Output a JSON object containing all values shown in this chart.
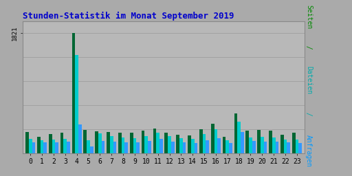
{
  "title": "Stunden-Statistik im Monat September 2019",
  "xlabel_values": [
    0,
    1,
    2,
    3,
    4,
    5,
    6,
    7,
    8,
    9,
    10,
    11,
    12,
    13,
    14,
    15,
    16,
    17,
    18,
    19,
    20,
    21,
    22,
    23
  ],
  "seiten": [
    320,
    245,
    285,
    305,
    1821,
    350,
    335,
    315,
    305,
    310,
    340,
    370,
    305,
    275,
    265,
    365,
    445,
    245,
    605,
    340,
    350,
    340,
    275,
    305
  ],
  "dateien": [
    215,
    200,
    210,
    215,
    1490,
    195,
    300,
    255,
    235,
    230,
    255,
    305,
    255,
    225,
    220,
    285,
    360,
    195,
    475,
    240,
    245,
    235,
    205,
    210
  ],
  "anfragen": [
    160,
    165,
    165,
    170,
    430,
    105,
    180,
    170,
    165,
    165,
    185,
    215,
    170,
    165,
    158,
    200,
    225,
    155,
    315,
    180,
    175,
    175,
    160,
    155
  ],
  "color_seiten": "#006633",
  "color_dateien": "#00CCCC",
  "color_anfragen": "#3399FF",
  "bg_color": "#AAAAAA",
  "plot_bg": "#B8B8B8",
  "title_color": "#0000CC",
  "ytick_label": "1821",
  "bar_width": 0.28,
  "ylim": [
    0,
    2000
  ],
  "grid_lines": [
    364,
    728,
    1092,
    1456,
    1820
  ],
  "ylabel_text": "Seiten / Dateien / Anfragen",
  "ylabel_color_seiten": "#008800",
  "ylabel_color_dateien": "#00AAAA",
  "ylabel_color_anfragen": "#0099FF"
}
